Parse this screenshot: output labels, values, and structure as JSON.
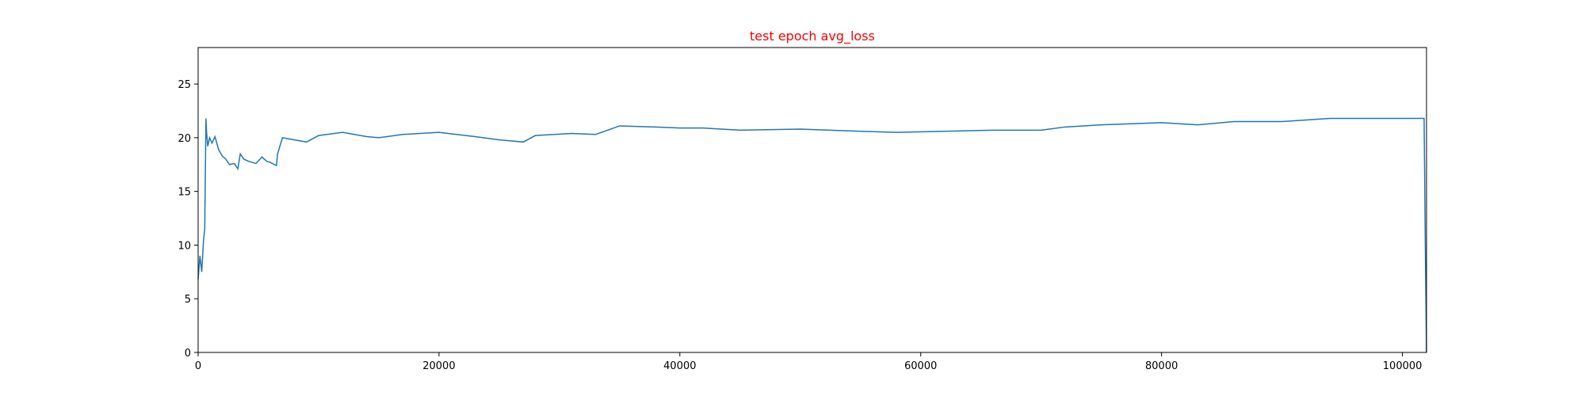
{
  "chart_data": {
    "type": "line",
    "title": "test epoch avg_loss",
    "x": [
      0,
      150,
      300,
      450,
      550,
      650,
      700,
      800,
      950,
      1150,
      1400,
      1700,
      2000,
      2300,
      2600,
      3000,
      3300,
      3500,
      3800,
      4200,
      4800,
      5300,
      5700,
      6000,
      6500,
      6600,
      7000,
      8000,
      9000,
      10000,
      12000,
      14000,
      15000,
      17000,
      20000,
      23000,
      25000,
      27000,
      28000,
      31000,
      33000,
      35000,
      38000,
      40000,
      42000,
      45000,
      50000,
      55000,
      58000,
      62000,
      66000,
      70000,
      72000,
      75000,
      80000,
      83000,
      86000,
      90000,
      94000,
      97000,
      100000,
      101800,
      101900,
      102000
    ],
    "series": [
      {
        "name": "avg_loss",
        "color": "#1f77b4",
        "values": [
          6.8,
          9.0,
          7.5,
          10.5,
          11.5,
          21.8,
          20.5,
          19.2,
          20.0,
          19.5,
          20.1,
          18.9,
          18.3,
          18.0,
          17.5,
          17.6,
          17.1,
          18.5,
          18.0,
          17.8,
          17.6,
          18.2,
          17.8,
          17.7,
          17.4,
          18.5,
          20.0,
          19.8,
          19.6,
          20.2,
          20.5,
          20.1,
          20.0,
          20.3,
          20.5,
          20.1,
          19.8,
          19.6,
          20.2,
          20.4,
          20.3,
          21.1,
          21.0,
          20.9,
          20.9,
          20.7,
          20.8,
          20.6,
          20.5,
          20.6,
          20.7,
          20.7,
          21.0,
          21.2,
          21.4,
          21.2,
          21.5,
          21.5,
          21.8,
          21.8,
          21.8,
          21.8,
          10.0,
          0.0
        ]
      }
    ],
    "xlim": [
      0,
      102000
    ],
    "ylim": [
      0,
      28.4
    ],
    "xticks": [
      0,
      20000,
      40000,
      60000,
      80000,
      100000
    ],
    "yticks": [
      0,
      5,
      10,
      15,
      20,
      25
    ]
  }
}
